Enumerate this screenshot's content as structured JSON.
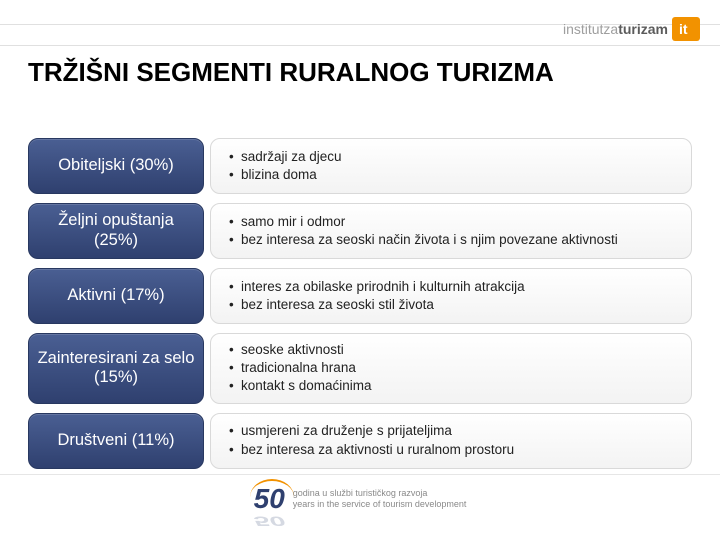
{
  "header": {
    "logo_part1": "institutza",
    "logo_part2": "turizam",
    "logo_letters": "it"
  },
  "title": "TRŽIŠNI SEGMENTI RURALNOG TURIZMA",
  "segments": [
    {
      "label": "Obiteljski (30%)",
      "bullets": [
        "sadržaji za djecu",
        "blizina doma"
      ]
    },
    {
      "label": "Željni opuštanja (25%)",
      "bullets": [
        "samo mir i odmor",
        "bez interesa za seoski način života i s njim povezane aktivnosti"
      ]
    },
    {
      "label": "Aktivni (17%)",
      "bullets": [
        "interes za obilaske prirodnih i kulturnih atrakcija",
        "bez interesa za seoski stil života"
      ]
    },
    {
      "label": "Zainteresirani za selo (15%)",
      "bullets": [
        "seoske aktivnosti",
        "tradicionalna hrana",
        "kontakt s domaćinima"
      ]
    },
    {
      "label": "Društveni (11%)",
      "bullets": [
        "usmjereni za druženje s prijateljima",
        "bez interesa za aktivnosti u ruralnom prostoru"
      ]
    }
  ],
  "footer": {
    "fifty": "50",
    "line1": "godina u službi turističkog razvoja",
    "line2": "years in the service of tourism development"
  },
  "colors": {
    "pill_gradient_top": "#4a5f93",
    "pill_gradient_bottom": "#2f406f",
    "desc_border": "#d9d9d9",
    "accent_orange": "#f29200",
    "text_dark": "#222222",
    "grey_logo": "#9e9e9e"
  }
}
